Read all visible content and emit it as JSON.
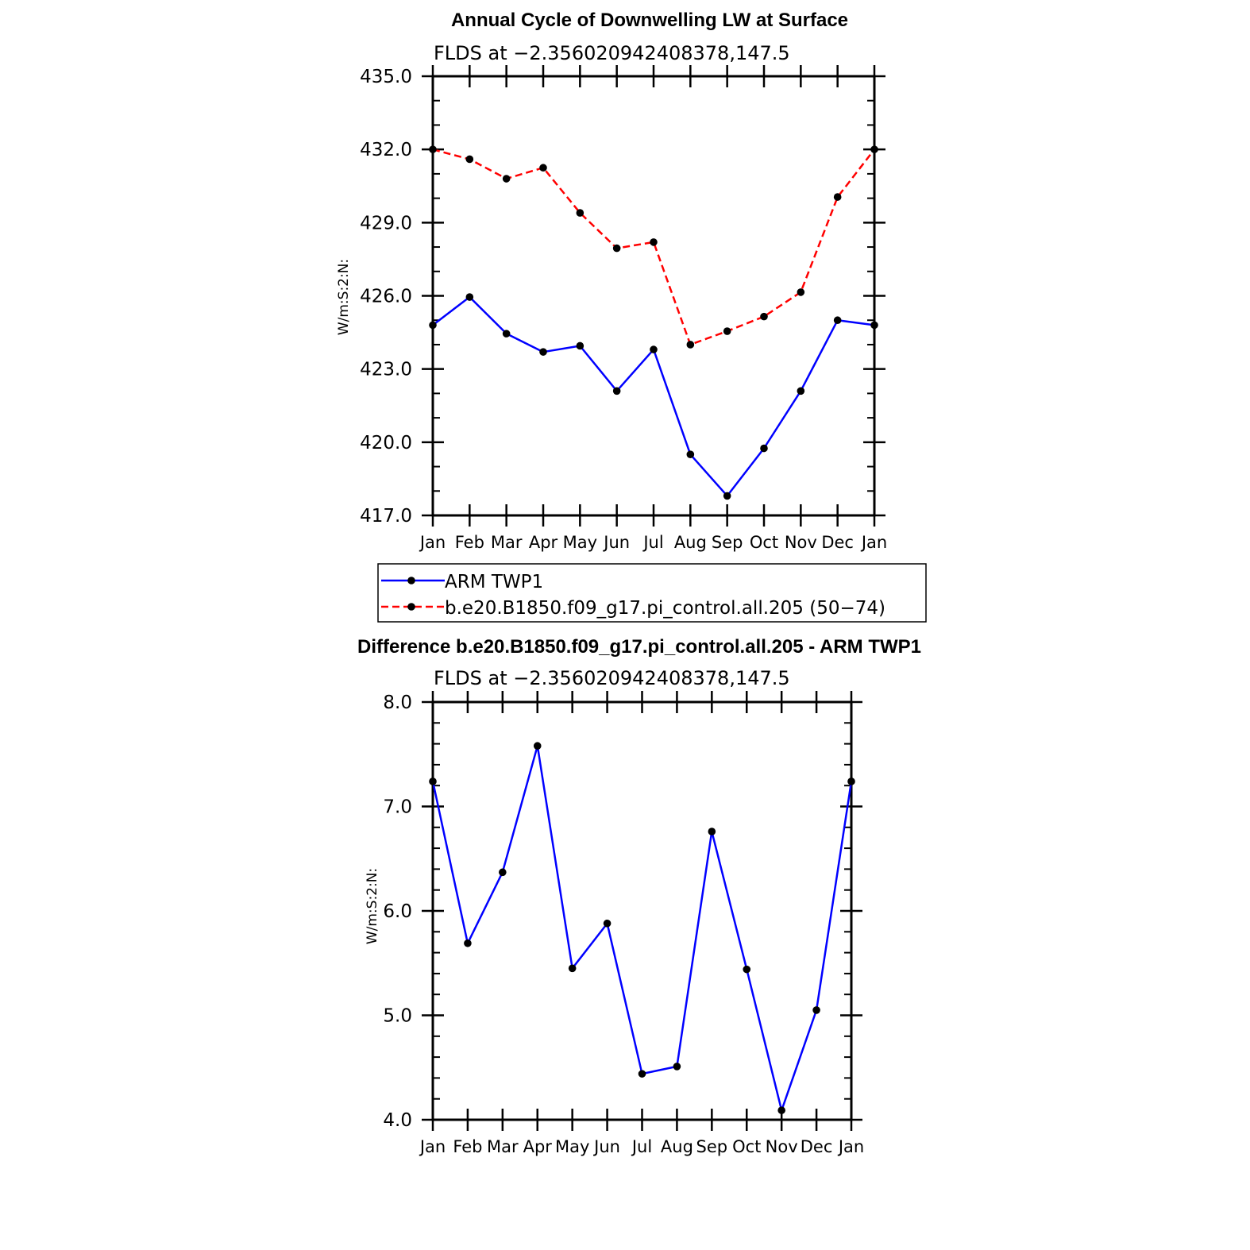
{
  "chart_data": [
    {
      "type": "line",
      "title": "Annual Cycle of Downwelling LW at Surface",
      "subtitle": "FLDS at −2.356020942408378,147.5",
      "ylabel": "W/m:S:2:N:",
      "xlabel": "",
      "categories": [
        "Jan",
        "Feb",
        "Mar",
        "Apr",
        "May",
        "Jun",
        "Jul",
        "Aug",
        "Sep",
        "Oct",
        "Nov",
        "Dec",
        "Jan"
      ],
      "ylim": [
        417.0,
        435.0
      ],
      "yticks": [
        "417.0",
        "420.0",
        "423.0",
        "426.0",
        "429.0",
        "432.0",
        "435.0"
      ],
      "grid": false,
      "legend_position": "below",
      "series": [
        {
          "name": "ARM TWP1",
          "color": "#0000ff",
          "dash": "solid",
          "values": [
            424.8,
            425.95,
            424.45,
            423.7,
            423.95,
            422.1,
            423.8,
            419.5,
            417.8,
            419.75,
            422.1,
            425.0,
            424.8
          ]
        },
        {
          "name": "b.e20.B1850.f09_g17.pi_control.all.205 (50−74)",
          "color": "#ff0000",
          "dash": "dashed",
          "values": [
            432.0,
            431.6,
            430.8,
            431.25,
            429.4,
            427.95,
            428.2,
            424.0,
            424.55,
            425.15,
            426.15,
            430.05,
            432.0
          ]
        }
      ]
    },
    {
      "type": "line",
      "title": "Difference b.e20.B1850.f09_g17.pi_control.all.205 - ARM TWP1",
      "subtitle": "FLDS at −2.356020942408378,147.5",
      "ylabel": "W/m:S:2:N:",
      "xlabel": "",
      "categories": [
        "Jan",
        "Feb",
        "Mar",
        "Apr",
        "May",
        "Jun",
        "Jul",
        "Aug",
        "Sep",
        "Oct",
        "Nov",
        "Dec",
        "Jan"
      ],
      "ylim": [
        4.0,
        8.0
      ],
      "yticks": [
        "4.0",
        "5.0",
        "6.0",
        "7.0",
        "8.0"
      ],
      "grid": false,
      "series": [
        {
          "color": "#0000ff",
          "dash": "solid",
          "values": [
            7.24,
            5.69,
            6.37,
            7.58,
            5.45,
            5.88,
            4.44,
            4.51,
            6.76,
            5.44,
            4.09,
            5.05,
            7.24
          ]
        }
      ]
    }
  ]
}
